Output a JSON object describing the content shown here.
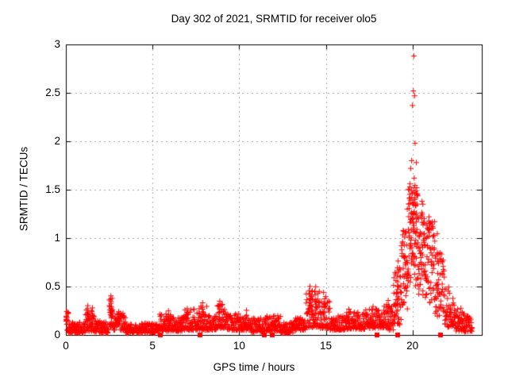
{
  "colors": {
    "background": "#ffffff",
    "axis": "#000000",
    "grid": "#a8a8a8",
    "marker": "#ff0000",
    "text": "#000000"
  },
  "chart_data": {
    "type": "scatter",
    "title": "Day 302 of 2021, SRMTID for receiver olo5",
    "xlabel": "GPS time / hours",
    "ylabel": "SRMTID / TECUs",
    "xlim": [
      0,
      24
    ],
    "ylim": [
      0,
      3
    ],
    "xticks": [
      [
        0,
        "0"
      ],
      [
        5,
        "5"
      ],
      [
        10,
        "10"
      ],
      [
        15,
        "15"
      ],
      [
        20,
        "20"
      ]
    ],
    "yticks": [
      [
        0,
        "0"
      ],
      [
        0.5,
        "0.5"
      ],
      [
        1,
        "1"
      ],
      [
        1.5,
        "1.5"
      ],
      [
        2,
        "2"
      ],
      [
        2.5,
        "2.5"
      ],
      [
        3,
        "3"
      ]
    ],
    "grid": true,
    "legend": "none",
    "series": [
      {
        "name": "SRMTID",
        "marker": "plus",
        "color": "#ff0000",
        "band_segments": [
          [
            0.0,
            0.15,
            18,
            0.04,
            0.27,
            1.0
          ],
          [
            0.15,
            1.1,
            75,
            0.02,
            0.13,
            1.5
          ],
          [
            1.1,
            1.65,
            45,
            0.04,
            0.26,
            1.6
          ],
          [
            1.65,
            2.45,
            62,
            0.02,
            0.15,
            1.7
          ],
          [
            2.5,
            2.7,
            22,
            0.08,
            0.38,
            1.3
          ],
          [
            2.7,
            3.45,
            60,
            0.05,
            0.23,
            1.5
          ],
          [
            3.45,
            5.4,
            150,
            0.02,
            0.12,
            1.5
          ],
          [
            5.4,
            6.1,
            55,
            0.04,
            0.22,
            1.7
          ],
          [
            6.1,
            6.8,
            55,
            0.04,
            0.18,
            1.6
          ],
          [
            6.8,
            7.35,
            45,
            0.05,
            0.27,
            1.7
          ],
          [
            7.35,
            8.15,
            62,
            0.05,
            0.3,
            1.8
          ],
          [
            8.15,
            8.7,
            45,
            0.05,
            0.2,
            1.6
          ],
          [
            8.7,
            9.25,
            45,
            0.07,
            0.33,
            1.7
          ],
          [
            9.25,
            10.6,
            100,
            0.05,
            0.22,
            1.7
          ],
          [
            10.6,
            11.5,
            70,
            0.03,
            0.18,
            1.6
          ],
          [
            11.5,
            12.4,
            70,
            0.04,
            0.2,
            1.7
          ],
          [
            12.4,
            13.1,
            55,
            0.02,
            0.13,
            1.5
          ],
          [
            13.1,
            13.85,
            60,
            0.05,
            0.18,
            1.6
          ],
          [
            13.85,
            14.65,
            70,
            0.08,
            0.46,
            1.8
          ],
          [
            14.65,
            15.25,
            50,
            0.07,
            0.4,
            2.0
          ],
          [
            15.25,
            16.1,
            65,
            0.05,
            0.2,
            1.6
          ],
          [
            16.1,
            17.3,
            90,
            0.06,
            0.24,
            1.7
          ],
          [
            17.3,
            18.35,
            80,
            0.07,
            0.28,
            1.7
          ],
          [
            18.35,
            18.9,
            45,
            0.05,
            0.33,
            1.6
          ],
          [
            18.9,
            19.35,
            48,
            0.1,
            0.72,
            1.3
          ],
          [
            19.35,
            19.75,
            48,
            0.25,
            1.1,
            1.0
          ],
          [
            19.75,
            20.3,
            95,
            0.5,
            1.55,
            0.8
          ],
          [
            20.3,
            20.75,
            55,
            0.35,
            1.3,
            0.9
          ],
          [
            20.75,
            21.3,
            62,
            0.25,
            1.18,
            0.9
          ],
          [
            21.3,
            21.85,
            55,
            0.15,
            0.85,
            1.2
          ],
          [
            21.85,
            22.45,
            55,
            0.08,
            0.5,
            1.4
          ],
          [
            22.45,
            23.0,
            50,
            0.04,
            0.28,
            1.4
          ],
          [
            23.0,
            23.45,
            35,
            0.03,
            0.2,
            1.3
          ]
        ],
        "spike_columns": [
          [
            1.25,
            0.3,
            6
          ],
          [
            1.5,
            0.28,
            5
          ],
          [
            2.6,
            0.4,
            9
          ],
          [
            3.05,
            0.25,
            5
          ],
          [
            5.9,
            0.25,
            5
          ],
          [
            7.0,
            0.28,
            5
          ],
          [
            7.9,
            0.33,
            6
          ],
          [
            8.85,
            0.34,
            6
          ],
          [
            9.0,
            0.32,
            5
          ],
          [
            10.4,
            0.25,
            4
          ],
          [
            14.05,
            0.5,
            8
          ],
          [
            14.2,
            0.46,
            6
          ],
          [
            14.4,
            0.5,
            7
          ],
          [
            14.9,
            0.43,
            6
          ],
          [
            16.35,
            0.26,
            4
          ],
          [
            17.7,
            0.3,
            4
          ],
          [
            18.6,
            0.35,
            4
          ],
          [
            19.15,
            0.76,
            7
          ],
          [
            21.45,
            1.05,
            4
          ]
        ],
        "outlier_points": [
          [
            20.08,
            2.88
          ],
          [
            20.05,
            2.52
          ],
          [
            20.12,
            2.47
          ],
          [
            20.0,
            2.37
          ],
          [
            20.15,
            1.98
          ],
          [
            19.95,
            1.8
          ],
          [
            20.22,
            1.78
          ],
          [
            19.9,
            1.72
          ],
          [
            20.1,
            1.62
          ],
          [
            19.85,
            1.56
          ],
          [
            20.25,
            1.52
          ],
          [
            20.55,
            1.38
          ],
          [
            20.6,
            1.35
          ],
          [
            20.95,
            1.22
          ],
          [
            21.0,
            1.15
          ],
          [
            19.7,
            1.3
          ],
          [
            19.6,
            1.05
          ],
          [
            21.1,
            1.1
          ]
        ]
      },
      {
        "name": "zero-flag-markers",
        "marker": "filled-square",
        "color": "#ff0000",
        "y": 0,
        "points_x": [
          5.45,
          7.74,
          11.45,
          11.9,
          17.96,
          19.15,
          21.6
        ]
      }
    ]
  }
}
